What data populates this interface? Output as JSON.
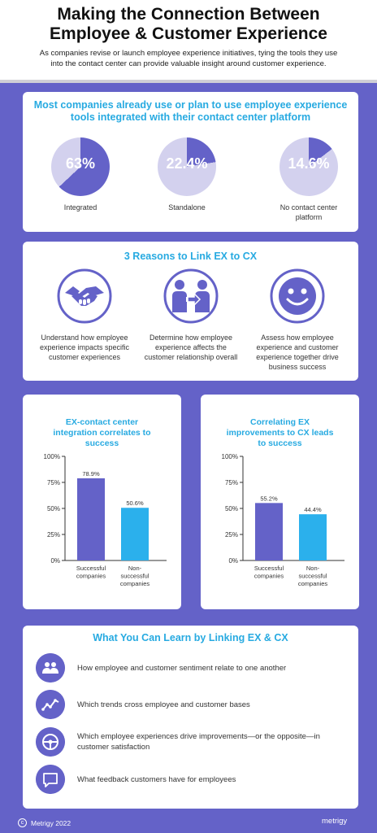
{
  "header": {
    "title_line1": "Making the Connection Between",
    "title_line2": "Employee & Customer Experience",
    "subtitle": "As companies revise or launch employee experience initiatives, tying the tools they use into the contact center can provide valuable insight around customer experience."
  },
  "tools": {
    "heading": "Most companies already use or plan to use employee experience tools integrated with their contact center platform",
    "items": [
      {
        "value_text": "63%",
        "value": 63,
        "label": "Integrated"
      },
      {
        "value_text": "22.4%",
        "value": 22.4,
        "label": "Standalone"
      },
      {
        "value_text": "14.6%",
        "value": 14.6,
        "label": "No contact center platform"
      }
    ]
  },
  "reasons": {
    "heading": "3 Reasons to Link EX to CX",
    "items": [
      {
        "icon": "handshake-icon",
        "text": "Understand how employee experience impacts specific customer experiences"
      },
      {
        "icon": "people-exchange-icon",
        "text": "Determine how employee experience affects the customer relationship overall"
      },
      {
        "icon": "smiley-icon",
        "text": "Assess how employee experience and customer experience together drive business success"
      }
    ]
  },
  "chart_data": [
    {
      "type": "bar",
      "title": "EX-contact center integration correlates to success",
      "categories": [
        "Successful companies",
        "Non-successful companies"
      ],
      "values": [
        78.9,
        50.6
      ],
      "value_labels": [
        "78.9%",
        "50.6%"
      ],
      "ylim": [
        0,
        100
      ],
      "yticks": [
        "0%",
        "25%",
        "50%",
        "75%",
        "100%"
      ],
      "colors": [
        "#6462c8",
        "#2bb0ec"
      ]
    },
    {
      "type": "bar",
      "title": "Correlating EX improvements to CX leads to success",
      "categories": [
        "Successful companies",
        "Non-successful companies"
      ],
      "values": [
        55.2,
        44.4
      ],
      "value_labels": [
        "55.2%",
        "44.4%"
      ],
      "ylim": [
        0,
        100
      ],
      "yticks": [
        "0%",
        "25%",
        "50%",
        "75%",
        "100%"
      ],
      "colors": [
        "#6462c8",
        "#2bb0ec"
      ]
    }
  ],
  "learn": {
    "heading": "What You Can Learn by Linking EX & CX",
    "items": [
      {
        "icon": "group-icon",
        "text": "How employee and customer sentiment relate to one another"
      },
      {
        "icon": "trend-icon",
        "text": "Which trends cross employee and customer bases"
      },
      {
        "icon": "steering-wheel-icon",
        "text": "Which employee experiences drive improvements—or the opposite—in customer satisfaction"
      },
      {
        "icon": "chat-icon",
        "text": "What feedback customers have for employees"
      }
    ]
  },
  "footer": {
    "copyright": "Metrigy 2022",
    "logo": "metrigy"
  },
  "colors": {
    "brand_purple": "#6462c8",
    "accent_blue": "#27aae1",
    "pie_light": "#d3d1ee"
  }
}
